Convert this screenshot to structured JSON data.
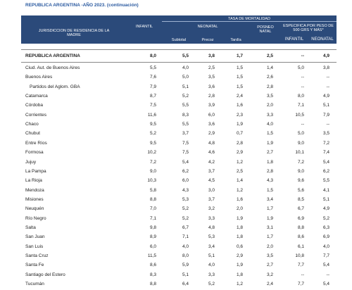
{
  "title": "REPUBLICA ARGENTINA -AÑO 2023. (continuación)",
  "header": {
    "jurisdiction": "JURISDICCION DE RESIDENCIA DE LA MADRE",
    "group": "TASA DE MORTALIDAD",
    "infantil": "INFANTIL",
    "neonatal": "NEONATAL",
    "subtotal": "Subtotal",
    "precoz": "Precoz",
    "tardia": "Tardía",
    "posneonatal": "POSNEO NATAL",
    "especifica": "ESPECIFICA POR PESO DE 500 GRS Y MÁS*",
    "esp_infantil": "INFANTIL",
    "esp_neonatal": "NEONATAL"
  },
  "table": {
    "rows": [
      [
        "REPUBLICA ARGENTINA",
        "8,0",
        "5,5",
        "3,8",
        "1,7",
        "2,5",
        "--",
        "4,9"
      ],
      [
        "Ciud. Aut. de Buenos Aires",
        "5,5",
        "4,0",
        "2,5",
        "1,5",
        "1,4",
        "5,0",
        "3,8"
      ],
      [
        "Buenos Aires",
        "7,6",
        "5,0",
        "3,5",
        "1,5",
        "2,6",
        "--",
        "--"
      ],
      [
        "Partidos del Aglom. GBA",
        "7,9",
        "5,1",
        "3,6",
        "1,5",
        "2,8",
        "--",
        "--"
      ],
      [
        "Catamarca",
        "8,7",
        "5,2",
        "2,8",
        "2,4",
        "3,5",
        "8,0",
        "4,9"
      ],
      [
        "Córdoba",
        "7,5",
        "5,5",
        "3,9",
        "1,6",
        "2,0",
        "7,1",
        "5,1"
      ],
      [
        "Corrientes",
        "11,6",
        "8,3",
        "6,0",
        "2,3",
        "3,3",
        "10,5",
        "7,9"
      ],
      [
        "Chaco",
        "9,5",
        "5,5",
        "3,6",
        "1,9",
        "4,0",
        "--",
        "--"
      ],
      [
        "Chubut",
        "5,2",
        "3,7",
        "2,9",
        "0,7",
        "1,5",
        "5,0",
        "3,5"
      ],
      [
        "Entre Ríos",
        "9,5",
        "7,5",
        "4,8",
        "2,8",
        "1,9",
        "9,0",
        "7,2"
      ],
      [
        "Formosa",
        "10,2",
        "7,5",
        "4,6",
        "2,9",
        "2,7",
        "10,1",
        "7,4"
      ],
      [
        "Jujuy",
        "7,2",
        "5,4",
        "4,2",
        "1,2",
        "1,8",
        "7,2",
        "5,4"
      ],
      [
        "La Pampa",
        "9,0",
        "6,2",
        "3,7",
        "2,5",
        "2,8",
        "9,0",
        "6,2"
      ],
      [
        "La Rioja",
        "10,3",
        "6,0",
        "4,5",
        "1,4",
        "4,3",
        "9,6",
        "5,5"
      ],
      [
        "Mendoza",
        "5,8",
        "4,3",
        "3,0",
        "1,2",
        "1,5",
        "5,6",
        "4,1"
      ],
      [
        "Misiones",
        "8,8",
        "5,3",
        "3,7",
        "1,6",
        "3,4",
        "8,5",
        "5,1"
      ],
      [
        "Neuquén",
        "7,0",
        "5,2",
        "3,2",
        "2,0",
        "1,7",
        "6,7",
        "4,9"
      ],
      [
        "Río Negro",
        "7,1",
        "5,2",
        "3,3",
        "1,9",
        "1,9",
        "6,9",
        "5,2"
      ],
      [
        "Salta",
        "9,8",
        "6,7",
        "4,8",
        "1,8",
        "3,1",
        "8,8",
        "6,3"
      ],
      [
        "San Juan",
        "8,9",
        "7,1",
        "5,3",
        "1,8",
        "1,7",
        "8,6",
        "6,9"
      ],
      [
        "San Luis",
        "6,0",
        "4,0",
        "3,4",
        "0,6",
        "2,0",
        "6,1",
        "4,0"
      ],
      [
        "Santa Cruz",
        "11,5",
        "8,0",
        "5,1",
        "2,9",
        "3,5",
        "10,8",
        "7,7"
      ],
      [
        "Santa Fe",
        "8,6",
        "5,9",
        "4,0",
        "1,9",
        "2,7",
        "7,7",
        "5,4"
      ],
      [
        "Santiago del Estero",
        "8,3",
        "5,1",
        "3,3",
        "1,8",
        "3,2",
        "--",
        "--"
      ],
      [
        "Tucumán",
        "8,8",
        "6,4",
        "5,2",
        "1,2",
        "2,4",
        "7,7",
        "5,4"
      ]
    ]
  }
}
